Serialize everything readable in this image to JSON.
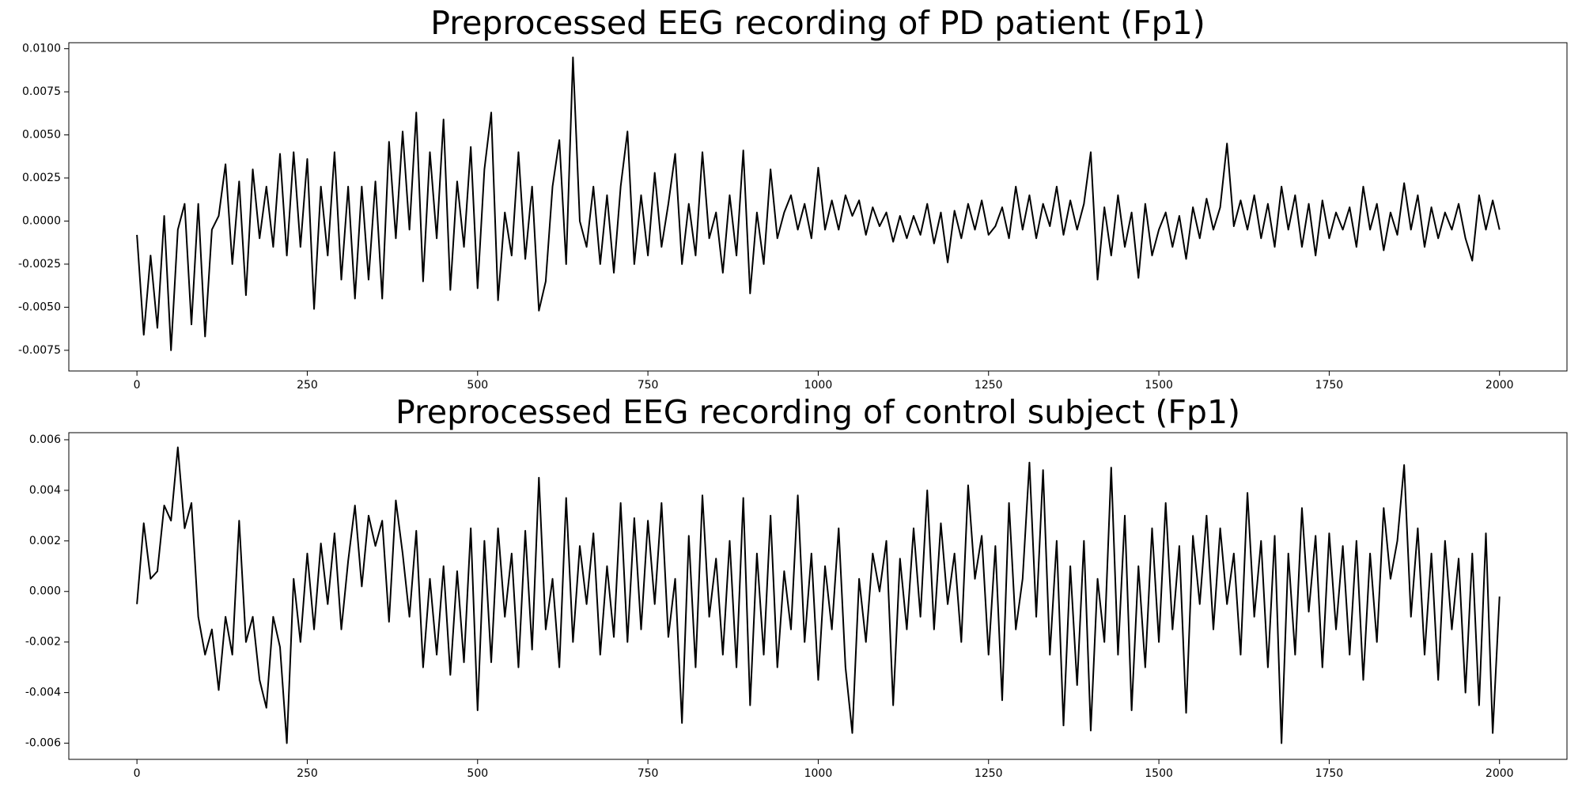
{
  "chart_data": [
    {
      "type": "line",
      "title": "Preprocessed EEG recording of PD patient (Fp1)",
      "color": "#000000",
      "grid": false,
      "xlim": [
        -100,
        2099
      ],
      "xticks": [
        0,
        250,
        500,
        750,
        1000,
        1250,
        1500,
        1750,
        2000
      ],
      "ylim": [
        -0.0087,
        0.01035
      ],
      "yticks": [
        {
          "value": 0.01,
          "label": "0.0100"
        },
        0.0075,
        {
          "value": 0.005,
          "label": "0.0050"
        },
        0.0025,
        {
          "value": 0,
          "label": "0.0000"
        },
        -0.0025,
        {
          "value": -0.005,
          "label": "-0.0050"
        },
        -0.0075
      ],
      "x": [
        0,
        10,
        20,
        30,
        40,
        50,
        60,
        70,
        80,
        90,
        100,
        110,
        120,
        130,
        140,
        150,
        160,
        170,
        180,
        190,
        200,
        210,
        220,
        230,
        240,
        250,
        260,
        270,
        280,
        290,
        300,
        310,
        320,
        330,
        340,
        350,
        360,
        370,
        380,
        390,
        400,
        410,
        420,
        430,
        440,
        450,
        460,
        470,
        480,
        490,
        500,
        510,
        520,
        530,
        540,
        550,
        560,
        570,
        580,
        590,
        600,
        610,
        620,
        630,
        640,
        650,
        660,
        670,
        680,
        690,
        700,
        710,
        720,
        730,
        740,
        750,
        760,
        770,
        780,
        790,
        800,
        810,
        820,
        830,
        840,
        850,
        860,
        870,
        880,
        890,
        900,
        910,
        920,
        930,
        940,
        950,
        960,
        970,
        980,
        990,
        1000,
        1010,
        1020,
        1030,
        1040,
        1050,
        1060,
        1070,
        1080,
        1090,
        1100,
        1110,
        1120,
        1130,
        1140,
        1150,
        1160,
        1170,
        1180,
        1190,
        1200,
        1210,
        1220,
        1230,
        1240,
        1250,
        1260,
        1270,
        1280,
        1290,
        1300,
        1310,
        1320,
        1330,
        1340,
        1350,
        1360,
        1370,
        1380,
        1390,
        1400,
        1410,
        1420,
        1430,
        1440,
        1450,
        1460,
        1470,
        1480,
        1490,
        1500,
        1510,
        1520,
        1530,
        1540,
        1550,
        1560,
        1570,
        1580,
        1590,
        1600,
        1610,
        1620,
        1630,
        1640,
        1650,
        1660,
        1670,
        1680,
        1690,
        1700,
        1710,
        1720,
        1730,
        1740,
        1750,
        1760,
        1770,
        1780,
        1790,
        1800,
        1810,
        1820,
        1830,
        1840,
        1850,
        1860,
        1870,
        1880,
        1890,
        1900,
        1910,
        1920,
        1930,
        1940,
        1950,
        1960,
        1970,
        1980,
        1990,
        2000
      ],
      "values": [
        -0.0008,
        -0.0066,
        -0.002,
        -0.0062,
        0.0003,
        -0.0075,
        -0.0005,
        0.001,
        -0.006,
        0.001,
        -0.0067,
        -0.0005,
        0.0003,
        0.0033,
        -0.0025,
        0.0023,
        -0.0043,
        0.003,
        -0.001,
        0.002,
        -0.0015,
        0.0039,
        -0.002,
        0.004,
        -0.0015,
        0.0036,
        -0.0051,
        0.002,
        -0.002,
        0.004,
        -0.0034,
        0.002,
        -0.0045,
        0.002,
        -0.0034,
        0.0023,
        -0.0045,
        0.0046,
        -0.001,
        0.0052,
        -0.0005,
        0.0063,
        -0.0035,
        0.004,
        -0.001,
        0.0059,
        -0.004,
        0.0023,
        -0.0015,
        0.0043,
        -0.0039,
        0.003,
        0.0063,
        -0.0046,
        0.0005,
        -0.002,
        0.004,
        -0.0022,
        0.002,
        -0.0052,
        -0.0035,
        0.002,
        0.0047,
        -0.0025,
        0.0095,
        0,
        -0.0015,
        0.002,
        -0.0025,
        0.0015,
        -0.003,
        0.002,
        0.0052,
        -0.0025,
        0.0015,
        -0.002,
        0.0028,
        -0.0015,
        0.001,
        0.0039,
        -0.0025,
        0.001,
        -0.002,
        0.004,
        -0.001,
        0.0005,
        -0.003,
        0.0015,
        -0.002,
        0.0041,
        -0.0042,
        0.0005,
        -0.0025,
        0.003,
        -0.001,
        0.0005,
        0.0015,
        -0.0005,
        0.001,
        -0.001,
        0.0031,
        -0.0005,
        0.0012,
        -0.0005,
        0.0015,
        0.0003,
        0.0012,
        -0.0008,
        0.0008,
        -0.0003,
        0.0005,
        -0.0012,
        0.0003,
        -0.001,
        0.0003,
        -0.0008,
        0.001,
        -0.0013,
        0.0005,
        -0.0024,
        0.0006,
        -0.001,
        0.001,
        -0.0005,
        0.0012,
        -0.0008,
        -0.0003,
        0.0008,
        -0.001,
        0.002,
        -0.0005,
        0.0015,
        -0.001,
        0.001,
        -0.0003,
        0.002,
        -0.0008,
        0.0012,
        -0.0005,
        0.001,
        0.004,
        -0.0034,
        0.0008,
        -0.002,
        0.0015,
        -0.0015,
        0.0005,
        -0.0033,
        0.001,
        -0.002,
        -0.0005,
        0.0005,
        -0.0015,
        0.0003,
        -0.0022,
        0.0008,
        -0.001,
        0.0013,
        -0.0005,
        0.0008,
        0.0045,
        -0.0003,
        0.0012,
        -0.0005,
        0.0015,
        -0.001,
        0.001,
        -0.0015,
        0.002,
        -0.0005,
        0.0015,
        -0.0015,
        0.001,
        -0.002,
        0.0012,
        -0.001,
        0.0005,
        -0.0005,
        0.0008,
        -0.0015,
        0.002,
        -0.0005,
        0.001,
        -0.0017,
        0.0005,
        -0.0008,
        0.0022,
        -0.0005,
        0.0015,
        -0.0015,
        0.0008,
        -0.001,
        0.0005,
        -0.0005,
        0.001,
        -0.001,
        -0.0023,
        0.0015,
        -0.0005,
        0.0012,
        -0.0005
      ]
    },
    {
      "type": "line",
      "title": "Preprocessed EEG recording of control subject (Fp1)",
      "color": "#000000",
      "grid": false,
      "xlim": [
        -100,
        2099
      ],
      "xticks": [
        0,
        250,
        500,
        750,
        1000,
        1250,
        1500,
        1750,
        2000
      ],
      "ylim": [
        -0.00664,
        0.00628
      ],
      "yticks": [
        0.006,
        0.004,
        0.002,
        {
          "value": 0,
          "label": "0.000"
        },
        -0.002,
        -0.004,
        -0.006
      ],
      "x": [
        0,
        10,
        20,
        30,
        40,
        50,
        60,
        70,
        80,
        90,
        100,
        110,
        120,
        130,
        140,
        150,
        160,
        170,
        180,
        190,
        200,
        210,
        220,
        230,
        240,
        250,
        260,
        270,
        280,
        290,
        300,
        310,
        320,
        330,
        340,
        350,
        360,
        370,
        380,
        390,
        400,
        410,
        420,
        430,
        440,
        450,
        460,
        470,
        480,
        490,
        500,
        510,
        520,
        530,
        540,
        550,
        560,
        570,
        580,
        590,
        600,
        610,
        620,
        630,
        640,
        650,
        660,
        670,
        680,
        690,
        700,
        710,
        720,
        730,
        740,
        750,
        760,
        770,
        780,
        790,
        800,
        810,
        820,
        830,
        840,
        850,
        860,
        870,
        880,
        890,
        900,
        910,
        920,
        930,
        940,
        950,
        960,
        970,
        980,
        990,
        1000,
        1010,
        1020,
        1030,
        1040,
        1050,
        1060,
        1070,
        1080,
        1090,
        1100,
        1110,
        1120,
        1130,
        1140,
        1150,
        1160,
        1170,
        1180,
        1190,
        1200,
        1210,
        1220,
        1230,
        1240,
        1250,
        1260,
        1270,
        1280,
        1290,
        1300,
        1310,
        1320,
        1330,
        1340,
        1350,
        1360,
        1370,
        1380,
        1390,
        1400,
        1410,
        1420,
        1430,
        1440,
        1450,
        1460,
        1470,
        1480,
        1490,
        1500,
        1510,
        1520,
        1530,
        1540,
        1550,
        1560,
        1570,
        1580,
        1590,
        1600,
        1610,
        1620,
        1630,
        1640,
        1650,
        1660,
        1670,
        1680,
        1690,
        1700,
        1710,
        1720,
        1730,
        1740,
        1750,
        1760,
        1770,
        1780,
        1790,
        1800,
        1810,
        1820,
        1830,
        1840,
        1850,
        1860,
        1870,
        1880,
        1890,
        1900,
        1910,
        1920,
        1930,
        1940,
        1950,
        1960,
        1970,
        1980,
        1990,
        2000
      ],
      "values": [
        -0.0005,
        0.0027,
        0.0005,
        0.0008,
        0.0034,
        0.0028,
        0.0057,
        0.0025,
        0.0035,
        -0.001,
        -0.0025,
        -0.0015,
        -0.0039,
        -0.001,
        -0.0025,
        0.0028,
        -0.002,
        -0.001,
        -0.0035,
        -0.0046,
        -0.001,
        -0.0022,
        -0.006,
        0.0005,
        -0.002,
        0.0015,
        -0.0015,
        0.0019,
        -0.0005,
        0.0023,
        -0.0015,
        0.0012,
        0.0034,
        0.0002,
        0.003,
        0.0018,
        0.0028,
        -0.0012,
        0.0036,
        0.0015,
        -0.001,
        0.0024,
        -0.003,
        0.0005,
        -0.0025,
        0.001,
        -0.0033,
        0.0008,
        -0.0028,
        0.0025,
        -0.0047,
        0.002,
        -0.0028,
        0.0025,
        -0.001,
        0.0015,
        -0.003,
        0.0024,
        -0.0023,
        0.0045,
        -0.0015,
        0.0005,
        -0.003,
        0.0037,
        -0.002,
        0.0018,
        -0.0005,
        0.0023,
        -0.0025,
        0.001,
        -0.0018,
        0.0035,
        -0.002,
        0.0029,
        -0.0015,
        0.0028,
        -0.0005,
        0.0035,
        -0.0018,
        0.0005,
        -0.0052,
        0.0022,
        -0.003,
        0.0038,
        -0.001,
        0.0013,
        -0.0025,
        0.002,
        -0.003,
        0.0037,
        -0.0045,
        0.0015,
        -0.0025,
        0.003,
        -0.003,
        0.0008,
        -0.0015,
        0.0038,
        -0.002,
        0.0015,
        -0.0035,
        0.001,
        -0.0015,
        0.0025,
        -0.003,
        -0.0056,
        0.0005,
        -0.002,
        0.0015,
        0,
        0.002,
        -0.0045,
        0.0013,
        -0.0015,
        0.0025,
        -0.001,
        0.004,
        -0.0015,
        0.0027,
        -0.0005,
        0.0015,
        -0.002,
        0.0042,
        0.0005,
        0.0022,
        -0.0025,
        0.0018,
        -0.0043,
        0.0035,
        -0.0015,
        0.0005,
        0.0051,
        -0.001,
        0.0048,
        -0.0025,
        0.002,
        -0.0053,
        0.001,
        -0.0037,
        0.002,
        -0.0055,
        0.0005,
        -0.002,
        0.0049,
        -0.0025,
        0.003,
        -0.0047,
        0.001,
        -0.003,
        0.0025,
        -0.002,
        0.0035,
        -0.0015,
        0.0018,
        -0.0048,
        0.0022,
        -0.0005,
        0.003,
        -0.0015,
        0.0025,
        -0.0005,
        0.0015,
        -0.0025,
        0.0039,
        -0.001,
        0.002,
        -0.003,
        0.0022,
        -0.006,
        0.0015,
        -0.0025,
        0.0033,
        -0.0008,
        0.0022,
        -0.003,
        0.0023,
        -0.0015,
        0.0018,
        -0.0025,
        0.002,
        -0.0035,
        0.0015,
        -0.002,
        0.0033,
        0.0005,
        0.002,
        0.005,
        -0.001,
        0.0025,
        -0.0025,
        0.0015,
        -0.0035,
        0.002,
        -0.0015,
        0.0013,
        -0.004,
        0.0015,
        -0.0045,
        0.0023,
        -0.0056,
        -0.0002
      ]
    }
  ]
}
